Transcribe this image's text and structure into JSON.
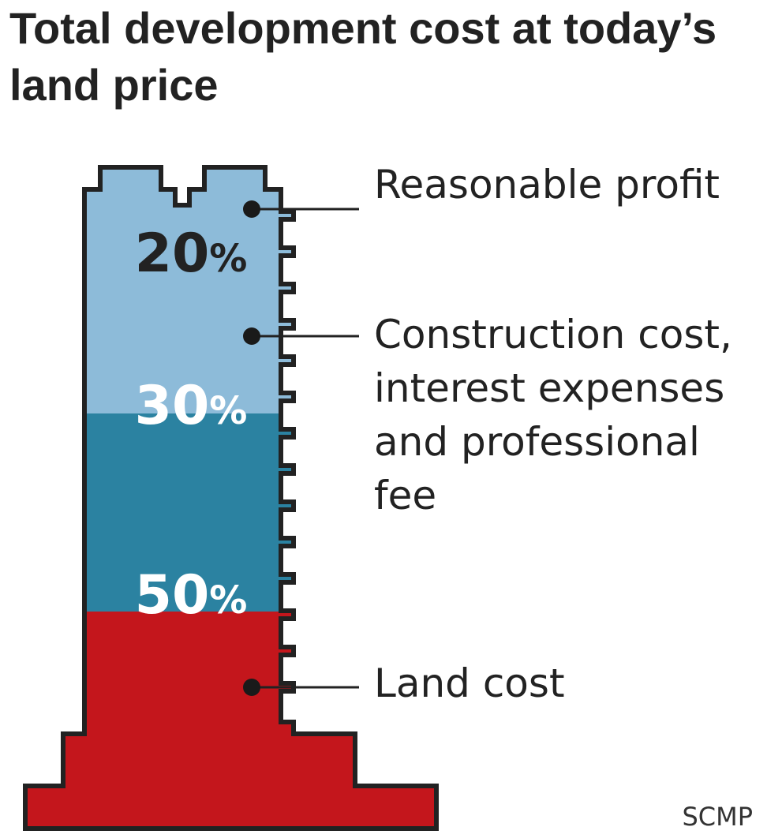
{
  "chart_data": {
    "type": "stacked-bar",
    "title": "Total development cost at today’s land price",
    "source": "SCMP",
    "segments": [
      {
        "label": "Reasonable profit",
        "value": 20,
        "display": "20",
        "unit": "%",
        "color": "#8dbbd9",
        "text_color": "#222222"
      },
      {
        "label": "Construction cost,\ninterest expenses\nand professional\nfee",
        "value": 30,
        "display": "30",
        "unit": "%",
        "color": "#2b82a1",
        "text_color": "#ffffff"
      },
      {
        "label": "Land cost",
        "value": 50,
        "display": "50",
        "unit": "%",
        "color": "#c4161c",
        "text_color": "#ffffff"
      }
    ]
  }
}
